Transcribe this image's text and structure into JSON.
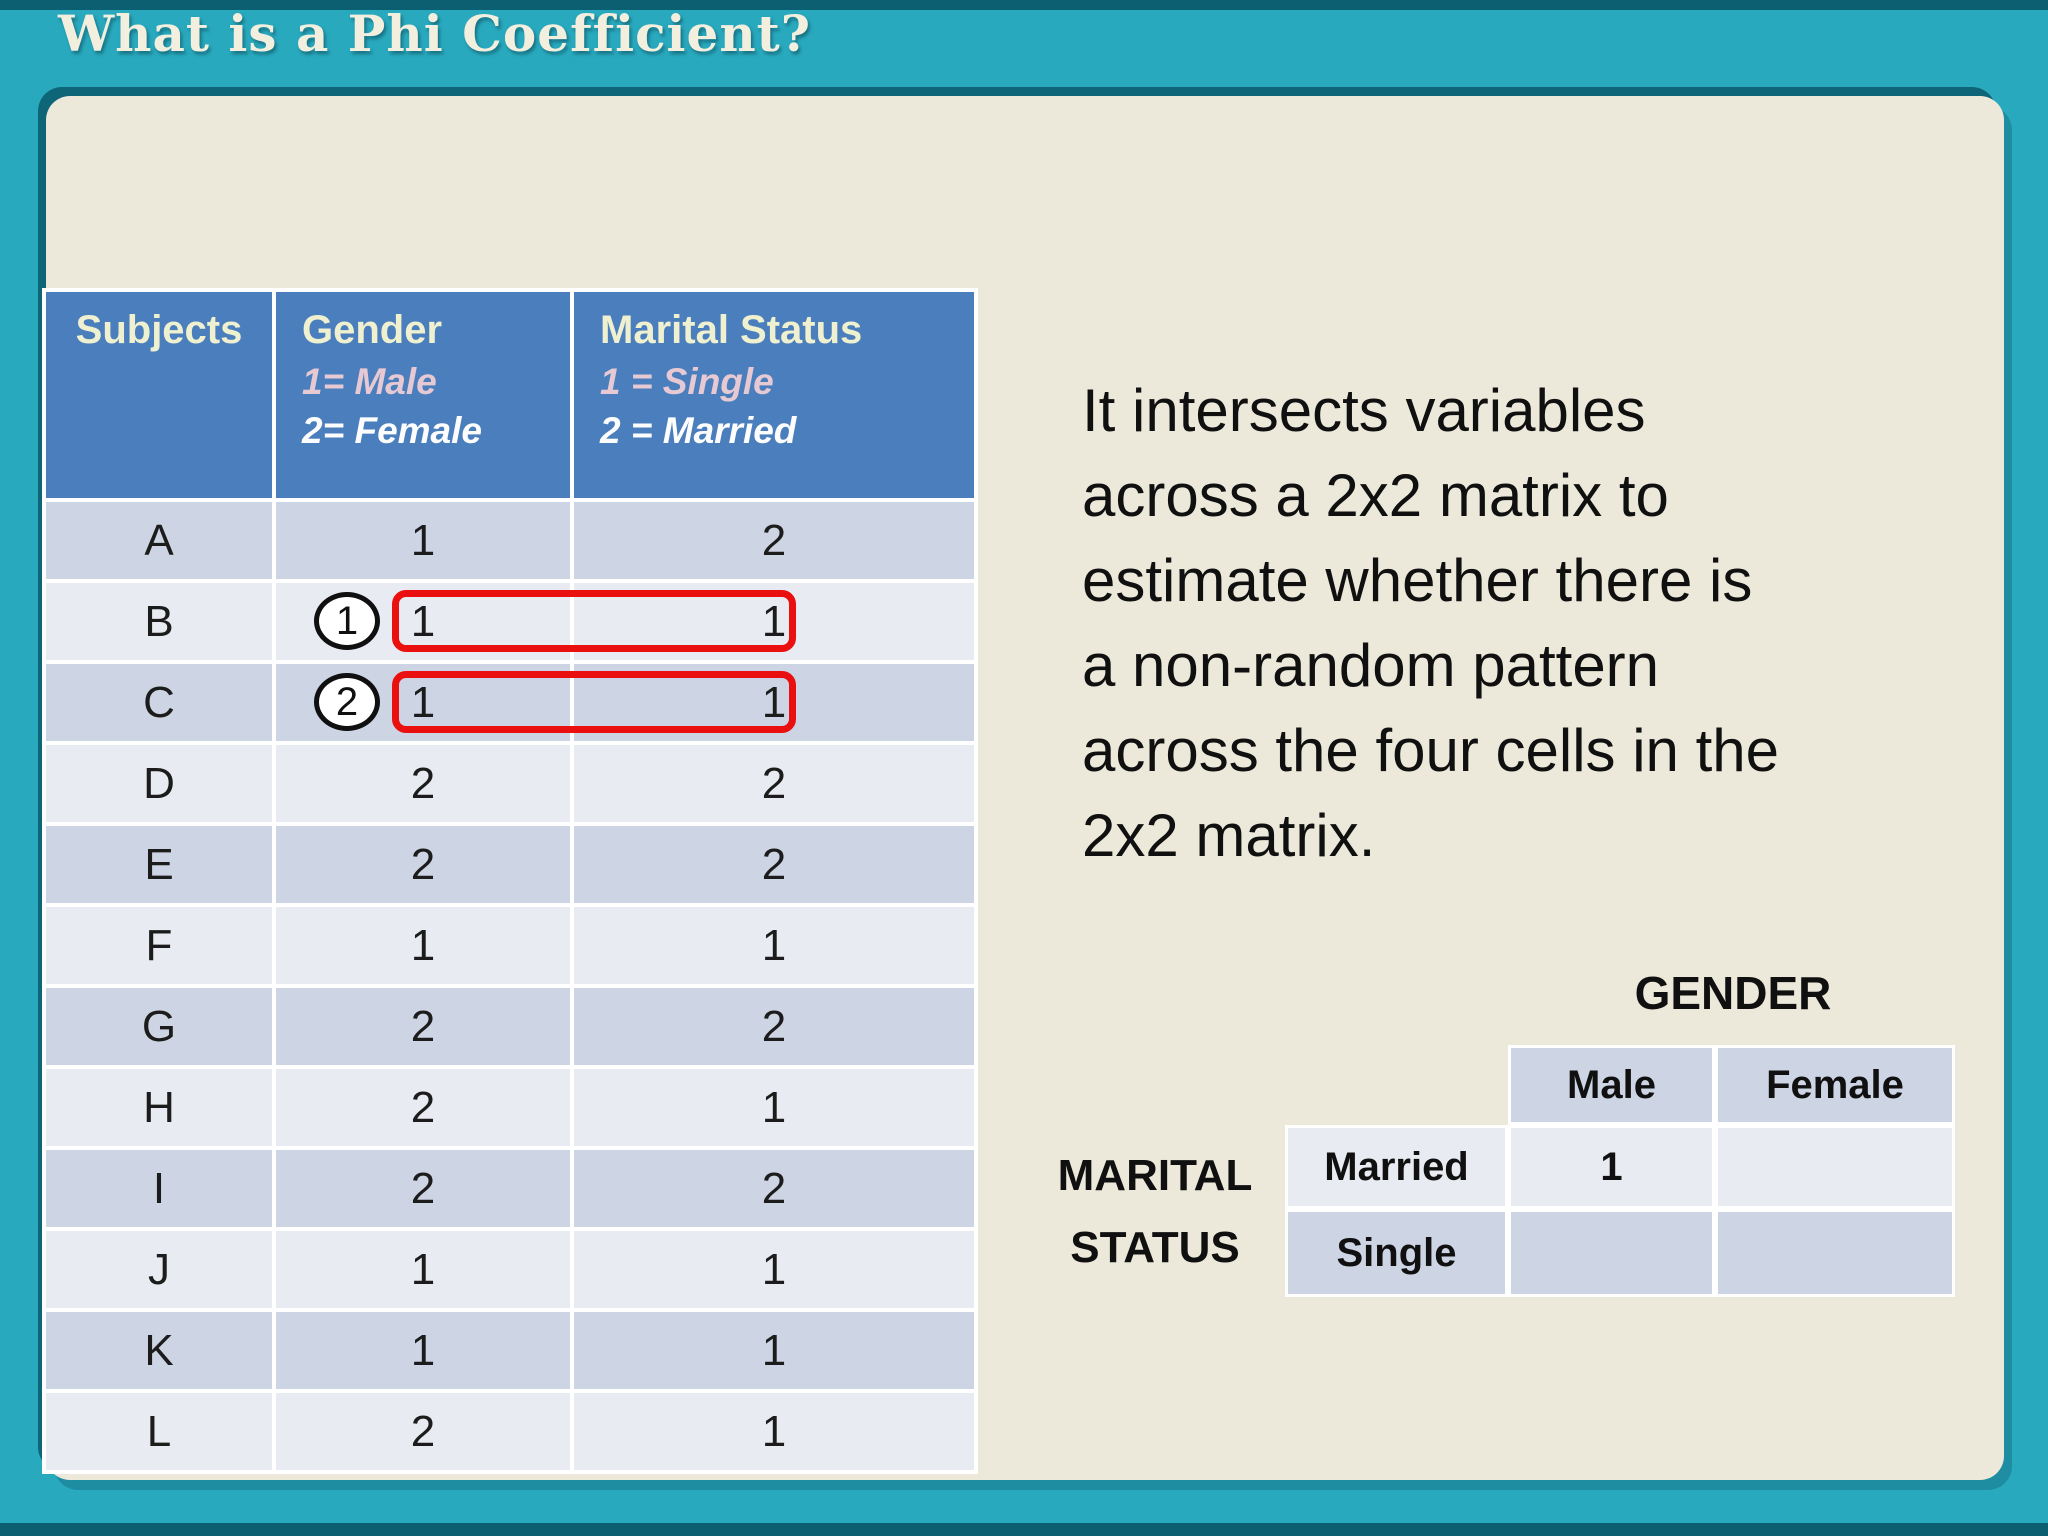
{
  "slide": {
    "title": "What is a Phi Coefficient?",
    "colors": {
      "frame_teal": "#29a9be",
      "frame_dark_edge": "#0b5f71",
      "panel_cream": "#ece9da",
      "table_header_blue": "#4a7ebc",
      "row_dark": "#cdd4e4",
      "row_light": "#e9ebf2",
      "header_text_cream": "#eff0cf",
      "legend_pink": "#e6c9d2",
      "annotation_red": "#ea1010"
    }
  },
  "data_table": {
    "columns": [
      {
        "title": "Subjects",
        "legend1": "",
        "legend2": ""
      },
      {
        "title": "Gender",
        "legend1": "1= Male",
        "legend2": "2= Female"
      },
      {
        "title": "Marital Status",
        "legend1": "1 = Single",
        "legend2": "2 = Married"
      }
    ],
    "rows": [
      {
        "subject": "A",
        "gender": "1",
        "marital": "2"
      },
      {
        "subject": "B",
        "gender": "1",
        "marital": "1",
        "annotation": "1"
      },
      {
        "subject": "C",
        "gender": "1",
        "marital": "1",
        "annotation": "2"
      },
      {
        "subject": "D",
        "gender": "2",
        "marital": "2"
      },
      {
        "subject": "E",
        "gender": "2",
        "marital": "2"
      },
      {
        "subject": "F",
        "gender": "1",
        "marital": "1"
      },
      {
        "subject": "G",
        "gender": "2",
        "marital": "2"
      },
      {
        "subject": "H",
        "gender": "2",
        "marital": "1"
      },
      {
        "subject": "I",
        "gender": "2",
        "marital": "2"
      },
      {
        "subject": "J",
        "gender": "1",
        "marital": "1"
      },
      {
        "subject": "K",
        "gender": "1",
        "marital": "1"
      },
      {
        "subject": "L",
        "gender": "2",
        "marital": "1"
      }
    ]
  },
  "description": {
    "lines": [
      "It intersects variables",
      "across a 2x2 matrix to",
      "estimate whether there is",
      "a non-random pattern",
      "across the four cells in the",
      "2x2 matrix."
    ]
  },
  "matrix": {
    "col_group_label": "GENDER",
    "row_group_label_line1": "MARITAL",
    "row_group_label_line2": "STATUS",
    "col_headers": [
      "Male",
      "Female"
    ],
    "row_headers": [
      "Married",
      "Single"
    ],
    "cells": [
      [
        "1",
        ""
      ],
      [
        "",
        ""
      ]
    ]
  }
}
